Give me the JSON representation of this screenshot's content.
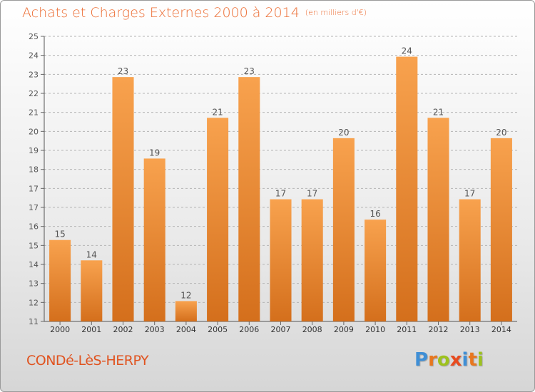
{
  "header": {
    "title": "Achats et Charges Externes 2000 à 2014",
    "unit": "(en milliers d'€)"
  },
  "footer": {
    "location": "CONDé-LèS-HERPY",
    "logo": [
      "P",
      "r",
      "o",
      "x",
      "i",
      "t",
      "i"
    ],
    "logo_colors": [
      "#3f8fd6",
      "#e8771f",
      "#9dc21d",
      "#e84b1f",
      "#3f8fd6",
      "#e8771f",
      "#9dc21d"
    ]
  },
  "chart_data": {
    "type": "bar",
    "title": "Achats et Charges Externes 2000 à 2014",
    "subtitle": "(en milliers d'€)",
    "xlabel": "",
    "ylabel": "",
    "categories": [
      "2000",
      "2001",
      "2002",
      "2003",
      "2004",
      "2005",
      "2006",
      "2007",
      "2008",
      "2009",
      "2010",
      "2011",
      "2012",
      "2013",
      "2014"
    ],
    "values": [
      15,
      14,
      23,
      19,
      12,
      21,
      23,
      17,
      17,
      20,
      16,
      24,
      21,
      17,
      20
    ],
    "ylim": [
      11,
      25
    ],
    "yticks": [
      "11",
      "12",
      "13",
      "14",
      "15",
      "16",
      "17",
      "17",
      "18",
      "19",
      "20",
      "21",
      "22",
      "23",
      "24",
      "25"
    ],
    "grid": true,
    "legend": "none",
    "colors": {
      "bar_light": "#f8a24e",
      "bar_dark": "#d46f1c",
      "grid": "#b5b5b5",
      "text": "#555555"
    }
  }
}
